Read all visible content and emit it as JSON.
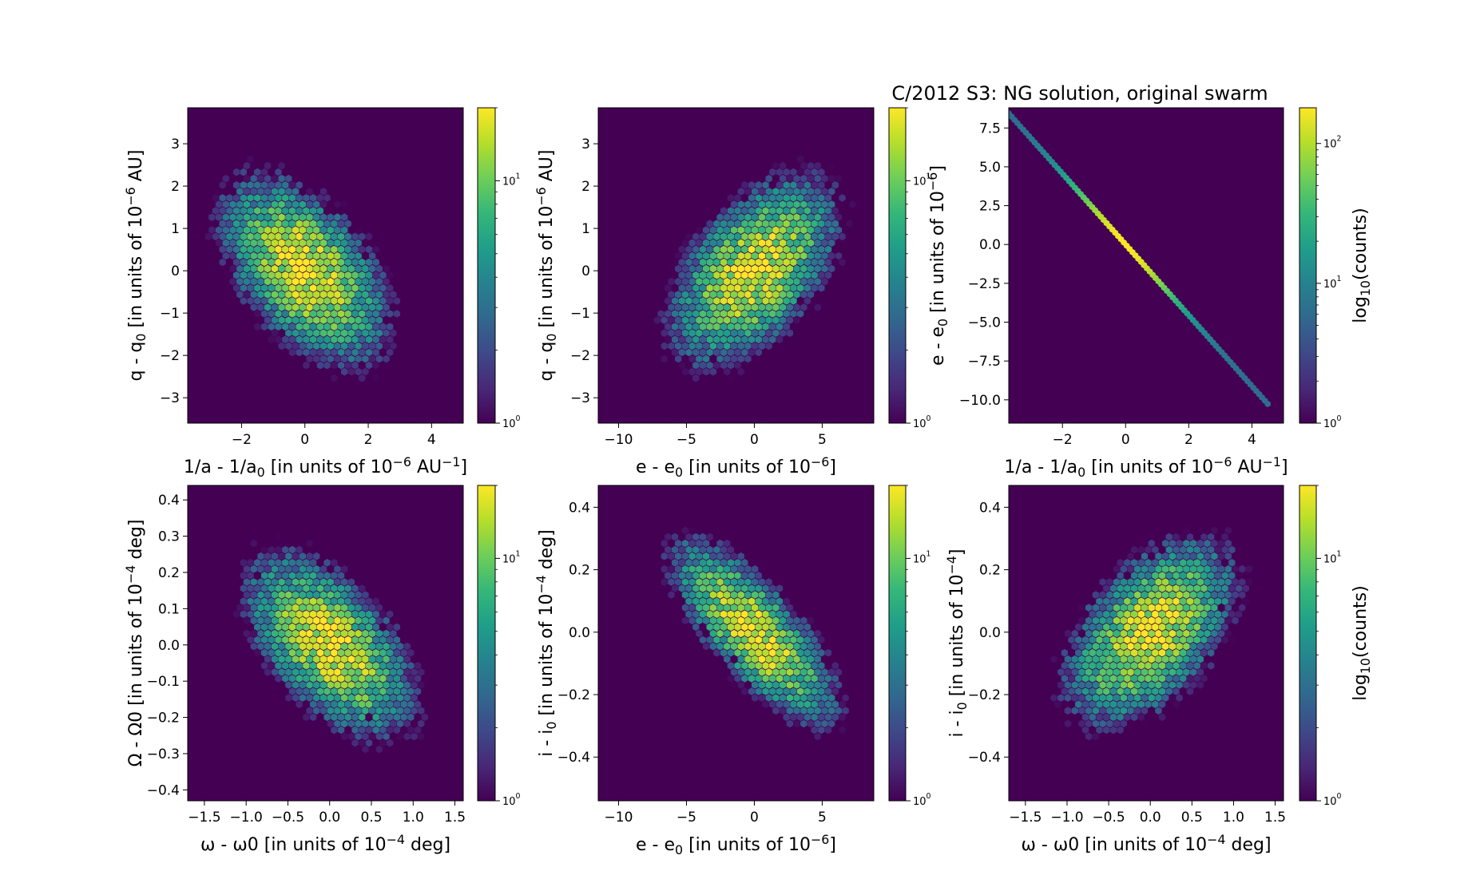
{
  "figure_title": "C/2012 S3: NG solution, original swarm",
  "colors": {
    "background": "#440154",
    "viridis": [
      "#440154",
      "#482878",
      "#3e4989",
      "#31688e",
      "#26828e",
      "#1f9e89",
      "#35b779",
      "#6ece58",
      "#b5de2b",
      "#fde725"
    ]
  },
  "chart_data": [
    {
      "type": "heatmap",
      "subtype": "hexbin",
      "xlabel": "1/a - 1/a0 [in units of 10^-6 AU^-1]",
      "ylabel": "q - q0 [in units of 10^-6 AU]",
      "xlim": [
        -3.7,
        5.0
      ],
      "ylim": [
        -3.6,
        3.85
      ],
      "xticks": [
        "−2",
        "0",
        "2",
        "4"
      ],
      "xtick_values": [
        -2,
        0,
        2,
        4
      ],
      "yticks": [
        "−3",
        "−2",
        "−1",
        "0",
        "1",
        "2",
        "3"
      ],
      "ytick_values": [
        -3,
        -2,
        -1,
        0,
        1,
        2,
        3
      ],
      "distribution": {
        "mean": [
          0,
          0
        ],
        "sd": [
          1.25,
          1.05
        ],
        "corr": -0.5
      },
      "colorbar": {
        "scale": "log",
        "max": 20,
        "labels": [
          "10^0",
          "10^1"
        ],
        "label": ""
      }
    },
    {
      "type": "heatmap",
      "subtype": "hexbin",
      "xlabel": "e - e0 [in units of 10^-6]",
      "ylabel": "q - q0 [in units of 10^-6 AU]",
      "xlim": [
        -11.5,
        8.8
      ],
      "ylim": [
        -3.6,
        3.85
      ],
      "xticks": [
        "−10",
        "−5",
        "0",
        "5"
      ],
      "xtick_values": [
        -10,
        -5,
        0,
        5
      ],
      "yticks": [
        "−3",
        "−2",
        "−1",
        "0",
        "1",
        "2",
        "3"
      ],
      "ytick_values": [
        -3,
        -2,
        -1,
        0,
        1,
        2,
        3
      ],
      "distribution": {
        "mean": [
          0,
          0
        ],
        "sd": [
          2.9,
          1.05
        ],
        "corr": 0.5
      },
      "colorbar": {
        "scale": "log",
        "max": 20,
        "labels": [
          "10^0",
          "10^1"
        ],
        "label": ""
      }
    },
    {
      "type": "heatmap",
      "subtype": "hexbin",
      "xlabel": "1/a - 1/a0 [in units of 10^-6 AU^-1]",
      "ylabel": "e - e0 [in units of 10^-6]",
      "xlim": [
        -3.7,
        5.0
      ],
      "ylim": [
        -11.5,
        8.8
      ],
      "xticks": [
        "−2",
        "0",
        "2",
        "4"
      ],
      "xtick_values": [
        -2,
        0,
        2,
        4
      ],
      "yticks": [
        "−10.0",
        "−7.5",
        "−5.0",
        "−2.5",
        "0.0",
        "2.5",
        "5.0",
        "7.5"
      ],
      "ytick_values": [
        -10,
        -7.5,
        -5,
        -2.5,
        0,
        2.5,
        5,
        7.5
      ],
      "line_relation": {
        "slope": -2.28,
        "x_range": [
          -3.7,
          4.5
        ]
      },
      "colorbar": {
        "scale": "log",
        "max": 180,
        "labels": [
          "10^0",
          "10^1",
          "10^2"
        ],
        "label": "log10(counts)"
      }
    },
    {
      "type": "heatmap",
      "subtype": "hexbin",
      "xlabel": "ω - ω0 [in units of 10^-4 deg]",
      "ylabel": "Ω - Ω0 [in units of 10^-4 deg]",
      "xlim": [
        -1.7,
        1.6
      ],
      "ylim": [
        -0.43,
        0.44
      ],
      "xticks": [
        "−1.5",
        "−1.0",
        "−0.5",
        "0.0",
        "0.5",
        "1.0",
        "1.5"
      ],
      "xtick_values": [
        -1.5,
        -1.0,
        -0.5,
        0.0,
        0.5,
        1.0,
        1.5
      ],
      "yticks": [
        "−0.4",
        "−0.3",
        "−0.2",
        "−0.1",
        "0.0",
        "0.1",
        "0.2",
        "0.3",
        "0.4"
      ],
      "ytick_values": [
        -0.4,
        -0.3,
        -0.2,
        -0.1,
        0.0,
        0.1,
        0.2,
        0.3,
        0.4
      ],
      "distribution": {
        "mean": [
          0,
          0
        ],
        "sd": [
          0.48,
          0.12
        ],
        "corr": -0.55
      },
      "colorbar": {
        "scale": "log",
        "max": 20,
        "labels": [
          "10^0",
          "10^1"
        ],
        "label": ""
      }
    },
    {
      "type": "heatmap",
      "subtype": "hexbin",
      "xlabel": "e - e0 [in units of 10^-6]",
      "ylabel": "i - i0 [in units of 10^-4 deg]",
      "xlim": [
        -11.5,
        8.8
      ],
      "ylim": [
        -0.54,
        0.47
      ],
      "xticks": [
        "−10",
        "−5",
        "0",
        "5"
      ],
      "xtick_values": [
        -10,
        -5,
        0,
        5
      ],
      "yticks": [
        "−0.4",
        "−0.2",
        "0.0",
        "0.2",
        "0.4"
      ],
      "ytick_values": [
        -0.4,
        -0.2,
        0.0,
        0.2,
        0.4
      ],
      "distribution": {
        "mean": [
          0,
          0
        ],
        "sd": [
          2.9,
          0.14
        ],
        "corr": -0.75
      },
      "colorbar": {
        "scale": "log",
        "max": 20,
        "labels": [
          "10^0",
          "10^1"
        ],
        "label": ""
      }
    },
    {
      "type": "heatmap",
      "subtype": "hexbin",
      "xlabel": "ω - ω0 [in units of 10^-4 deg]",
      "ylabel": "i - i0 [in units of 10^-4]",
      "xlim": [
        -1.7,
        1.6
      ],
      "ylim": [
        -0.54,
        0.47
      ],
      "xticks": [
        "−1.5",
        "−1.0",
        "−0.5",
        "0.0",
        "0.5",
        "1.0",
        "1.5"
      ],
      "xtick_values": [
        -1.5,
        -1.0,
        -0.5,
        0.0,
        0.5,
        1.0,
        1.5
      ],
      "yticks": [
        "−0.4",
        "−0.2",
        "0.0",
        "0.2",
        "0.4"
      ],
      "ytick_values": [
        -0.4,
        -0.2,
        0.0,
        0.2,
        0.4
      ],
      "distribution": {
        "mean": [
          0,
          0
        ],
        "sd": [
          0.48,
          0.14
        ],
        "corr": 0.5
      },
      "colorbar": {
        "scale": "log",
        "max": 20,
        "labels": [
          "10^0",
          "10^1"
        ],
        "label": "log10(counts)"
      }
    }
  ]
}
